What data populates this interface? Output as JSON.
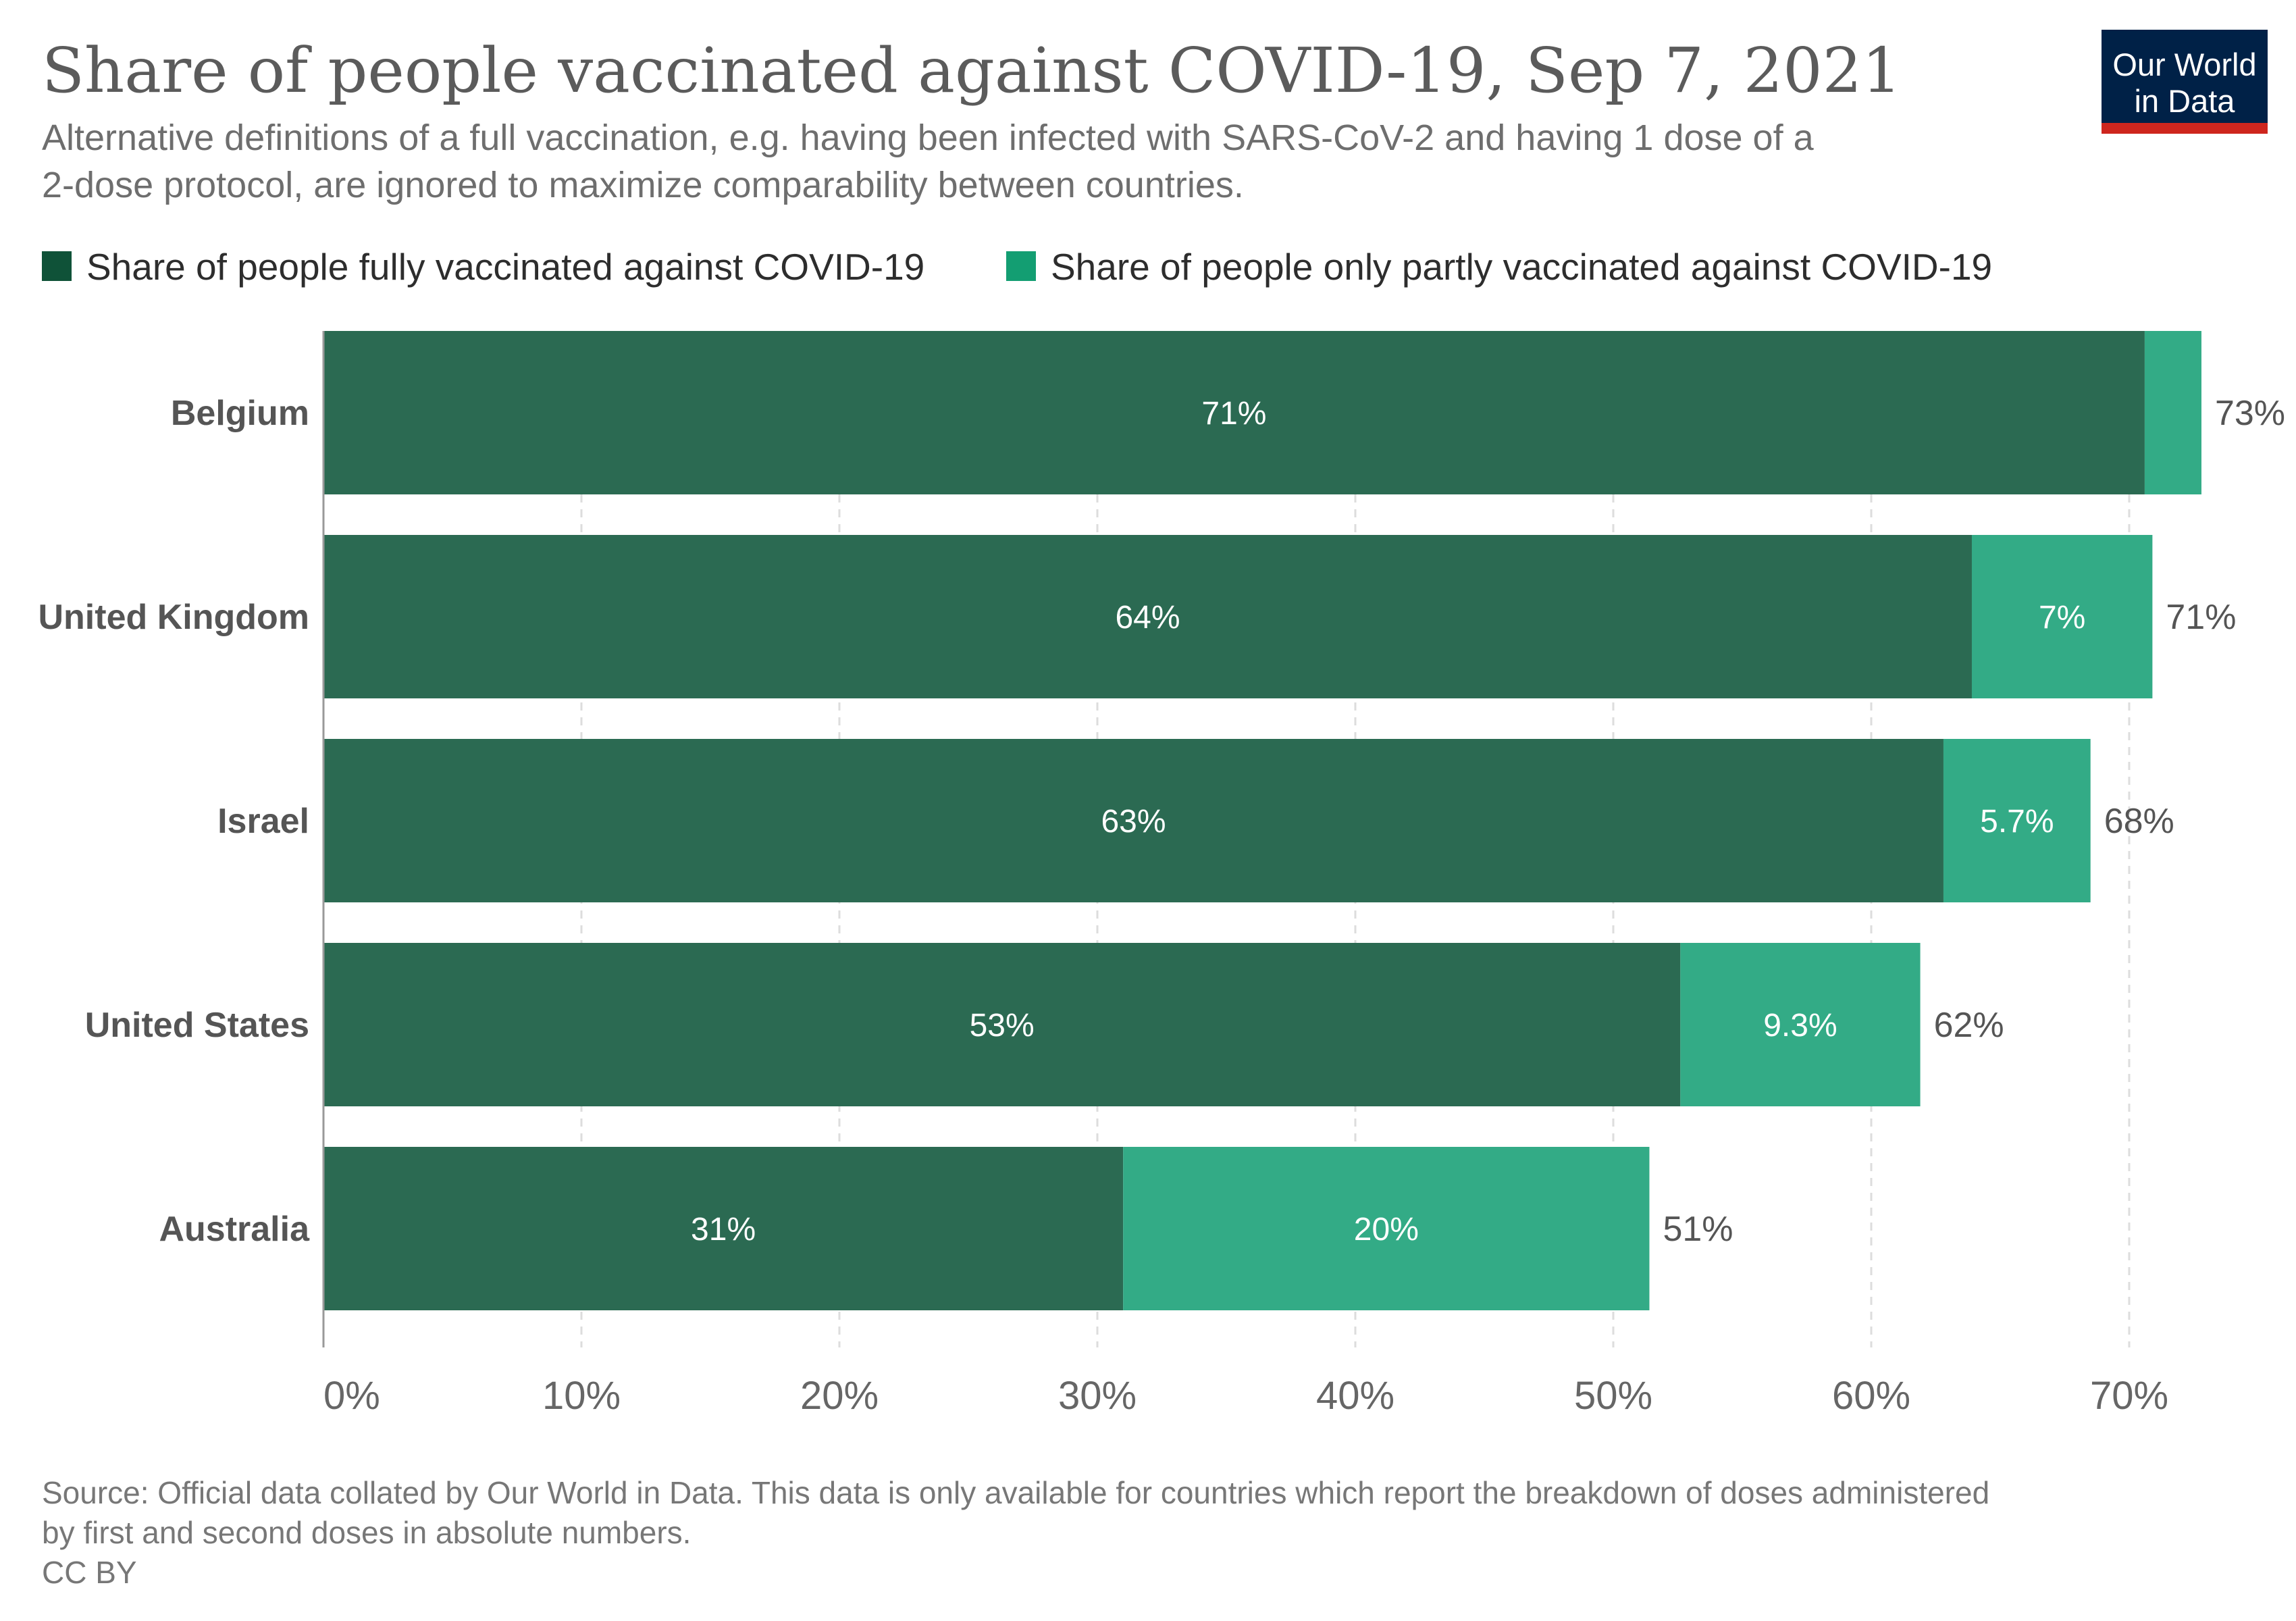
{
  "logo": {
    "line1": "Our World",
    "line2": "in Data",
    "bg_color": "#002147",
    "accent_color": "#ce261e"
  },
  "chart_data": {
    "type": "bar",
    "orientation": "horizontal",
    "stacked": true,
    "title": "Share of people vaccinated against COVID-19, Sep 7, 2021",
    "subtitle_lines": [
      "Alternative definitions of a full vaccination, e.g. having been infected with SARS-CoV-2 and having 1 dose of a",
      "2-dose protocol, are ignored to maximize comparability between countries."
    ],
    "legend_position": "top-left",
    "categories": [
      "Belgium",
      "United Kingdom",
      "Israel",
      "United States",
      "Australia"
    ],
    "series": [
      {
        "name": "Share of people fully vaccinated against COVID-19",
        "color": "#2b6a52",
        "legend_color": "#0f5238",
        "values": [
          70.6,
          63.9,
          62.8,
          52.6,
          31.0
        ],
        "labels": [
          "71%",
          "64%",
          "63%",
          "53%",
          "31%"
        ]
      },
      {
        "name": "Share of people only partly vaccinated against COVID-19",
        "color": "#33ab86",
        "legend_color": "#139e72",
        "values": [
          2.2,
          7.0,
          5.7,
          9.3,
          20.4
        ],
        "labels": [
          "",
          "7%",
          "5.7%",
          "9.3%",
          "20%"
        ]
      }
    ],
    "totals": [
      "73%",
      "71%",
      "68%",
      "62%",
      "51%"
    ],
    "xlim": [
      0,
      70
    ],
    "ticks": [
      0,
      10,
      20,
      30,
      40,
      50,
      60,
      70
    ],
    "tick_labels": [
      "0%",
      "10%",
      "20%",
      "30%",
      "40%",
      "50%",
      "60%",
      "70%"
    ],
    "grid": true,
    "footer_lines": [
      "Source: Official data collated by Our World in Data. This data is only available for countries which report the breakdown of doses administered",
      "by first and second doses in absolute numbers.",
      "CC BY"
    ]
  }
}
